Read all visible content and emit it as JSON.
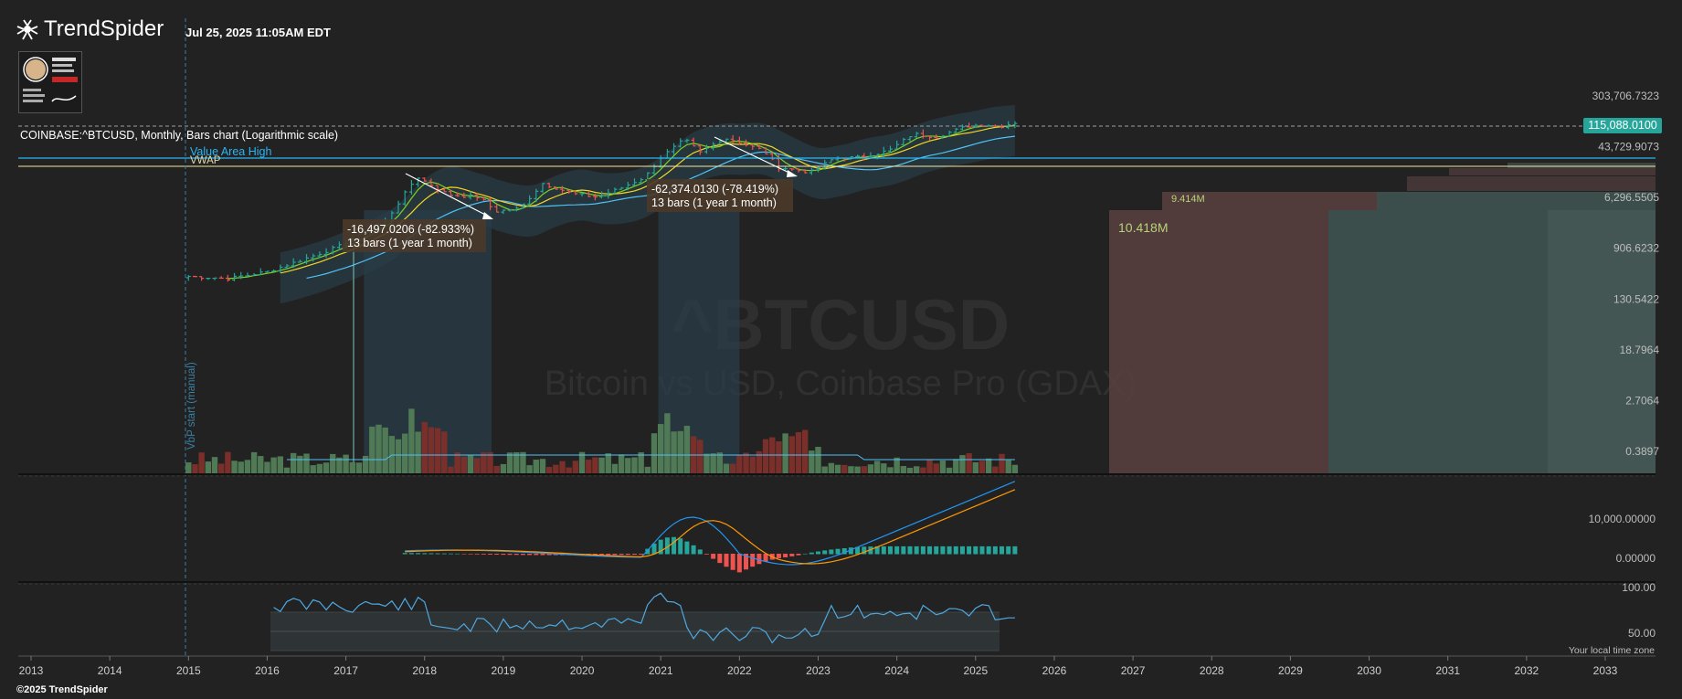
{
  "header": {
    "brand": "TrendSpider",
    "timestamp": "Jul 25, 2025 11:05AM EDT",
    "copyright": "©2025 TrendSpider",
    "timezone_note": "Your local time zone"
  },
  "colors": {
    "background": "#222222",
    "up": "#26a69a",
    "down": "#ef5350",
    "macd_line": "#2196f3",
    "signal_line": "#ff9800",
    "ma_green": "#7ed321",
    "ma_yellow": "#f5d623",
    "vwap": "#f5e6a0",
    "value_area_high": "#29b6f6"
  },
  "chart_data": [
    {
      "type": "bar",
      "panel": "price",
      "title": "COINBASE:^BTCUSD, Monthly, Bars chart (Logarithmic scale)",
      "watermark_symbol": "^BTCUSD",
      "watermark_name": "Bitcoin vs USD, Coinbase Pro (GDAX)",
      "scale": "log",
      "y_tick_labels": [
        "303,706.7323",
        "43,729.9073",
        "6,296.5505",
        "906.6232",
        "130.5422",
        "18.7964",
        "2.7064",
        "0.3897"
      ],
      "x_tick_labels": [
        "2013",
        "2014",
        "2015",
        "2016",
        "2017",
        "2018",
        "2019",
        "2020",
        "2021",
        "2022",
        "2023",
        "2024",
        "2025",
        "2026",
        "2027",
        "2028",
        "2029",
        "2030",
        "2031",
        "2032",
        "2033"
      ],
      "last_price": "115,088.0100",
      "monthly_close": [
        [
          2015.0,
          310
        ],
        [
          2015.5,
          285
        ],
        [
          2016.0,
          370
        ],
        [
          2016.5,
          620
        ],
        [
          2016.9,
          960
        ],
        [
          2017.5,
          2500
        ],
        [
          2017.9,
          14000
        ],
        [
          2018.3,
          7000
        ],
        [
          2018.7,
          6400
        ],
        [
          2018.9,
          3700
        ],
        [
          2019.2,
          4100
        ],
        [
          2019.5,
          10800
        ],
        [
          2019.9,
          7200
        ],
        [
          2020.2,
          6400
        ],
        [
          2020.5,
          9100
        ],
        [
          2020.8,
          13800
        ],
        [
          2021.0,
          29000
        ],
        [
          2021.3,
          58000
        ],
        [
          2021.5,
          35000
        ],
        [
          2021.8,
          61000
        ],
        [
          2021.9,
          57000
        ],
        [
          2022.3,
          38000
        ],
        [
          2022.5,
          20000
        ],
        [
          2022.9,
          16500
        ],
        [
          2023.2,
          28000
        ],
        [
          2023.5,
          29200
        ],
        [
          2023.9,
          37700
        ],
        [
          2024.2,
          71000
        ],
        [
          2024.5,
          64000
        ],
        [
          2024.9,
          96000
        ],
        [
          2025.1,
          102000
        ],
        [
          2025.3,
          94000
        ],
        [
          2025.56,
          115088
        ]
      ],
      "lines": {
        "value_area_high_label": "Value Area High",
        "vwap_label": "VWAP",
        "vbp_start_label": "VbP start (manual)"
      },
      "annotations": [
        {
          "text": "-16,497.0206 (-82.933%)",
          "subtext": "13 bars (1 year 1 month)"
        },
        {
          "text": "-62,374.0130 (-78.419%)",
          "subtext": "13 bars (1 year 1 month)"
        }
      ],
      "volume_profile": {
        "labels": [
          "10.418M",
          "9.414M"
        ]
      }
    },
    {
      "type": "bar",
      "panel": "macd",
      "y_tick_labels": [
        "10,000.00000",
        "0.00000"
      ]
    },
    {
      "type": "line",
      "panel": "rsi",
      "y_tick_labels": [
        "100.00",
        "50.00"
      ]
    }
  ]
}
